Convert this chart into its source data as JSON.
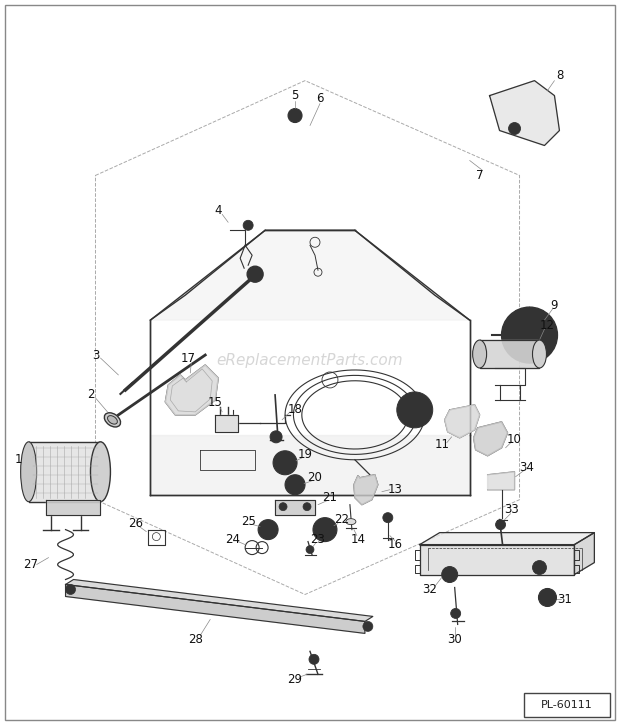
{
  "background_color": "#f5f5f0",
  "border_color": "#aaaaaa",
  "watermark_text": "eReplacementParts.com",
  "watermark_color": "#bbbbbb",
  "watermark_fontsize": 11,
  "part_label_color": "#111111",
  "part_label_fontsize": 8.5,
  "line_color": "#333333",
  "diagram_id": "PL-60111",
  "fig_width": 6.2,
  "fig_height": 7.25,
  "dpi": 100
}
